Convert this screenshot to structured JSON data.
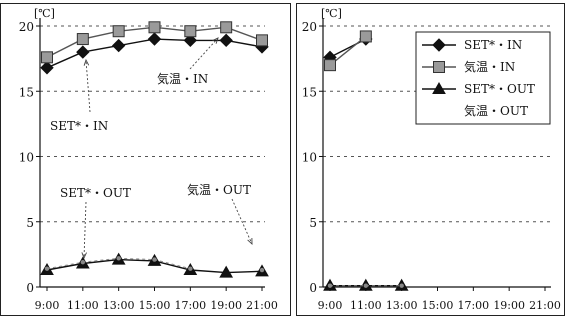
{
  "chart_data": [
    {
      "type": "line",
      "panel": "left",
      "unit_label": "[℃]",
      "x": [
        "9:00",
        "11:00",
        "13:00",
        "15:00",
        "17:00",
        "19:00",
        "21:00"
      ],
      "ylim": [
        0,
        20
      ],
      "yticks": [
        0,
        5,
        10,
        15,
        20
      ],
      "grid": true,
      "series": [
        {
          "name": "SET*・IN",
          "marker": "diamond",
          "color": "#111111",
          "line_style": "solid",
          "values": [
            16.8,
            18.0,
            18.5,
            19.0,
            18.9,
            18.9,
            18.4
          ]
        },
        {
          "name": "気温・IN",
          "marker": "square",
          "color": "#555555",
          "line_style": "solid",
          "values": [
            17.6,
            19.0,
            19.6,
            19.9,
            19.6,
            19.9,
            18.9
          ]
        },
        {
          "name": "SET*・OUT",
          "marker": "triangle",
          "color": "#111111",
          "line_style": "solid",
          "values": [
            1.3,
            1.8,
            2.1,
            2.0,
            1.3,
            1.1,
            1.2
          ]
        },
        {
          "name": "気温・OUT",
          "marker": "none",
          "color": "#888888",
          "line_style": "dashed",
          "values": [
            1.4,
            1.9,
            2.2,
            2.1,
            1.4,
            null,
            1.3
          ]
        }
      ],
      "annotations": [
        {
          "text": "気温・IN",
          "x": "17:00",
          "y": 16.2
        },
        {
          "text": "SET*・IN",
          "x": "9:00",
          "y": 12.0
        },
        {
          "text": "SET*・OUT",
          "x": "9:00",
          "y": 7.0
        },
        {
          "text": "気温・OUT",
          "x": "17:00",
          "y": 7.3
        }
      ]
    },
    {
      "type": "line",
      "panel": "right",
      "unit_label": "[℃]",
      "x": [
        "9:00",
        "11:00",
        "13:00",
        "15:00",
        "17:00",
        "19:00",
        "21:00"
      ],
      "ylim": [
        0,
        20
      ],
      "yticks": [
        0,
        5,
        10,
        15,
        20
      ],
      "grid": true,
      "legend_position": "top-right",
      "series": [
        {
          "name": "SET*・IN",
          "marker": "diamond",
          "color": "#111111",
          "line_style": "solid",
          "values": [
            17.6,
            19.0,
            null,
            null,
            null,
            null,
            null
          ]
        },
        {
          "name": "気温・IN",
          "marker": "square",
          "color": "#555555",
          "line_style": "solid",
          "values": [
            17.0,
            19.2,
            null,
            null,
            null,
            null,
            null
          ]
        },
        {
          "name": "SET*・OUT",
          "marker": "triangle",
          "color": "#111111",
          "line_style": "solid",
          "values": [
            0.1,
            0.1,
            0.1,
            null,
            null,
            null,
            null
          ]
        },
        {
          "name": "気温・OUT",
          "marker": "none",
          "color": "#888888",
          "line_style": "dashed",
          "values": [
            0.1,
            0.1,
            0.1,
            null,
            null,
            null,
            null
          ]
        }
      ]
    }
  ]
}
